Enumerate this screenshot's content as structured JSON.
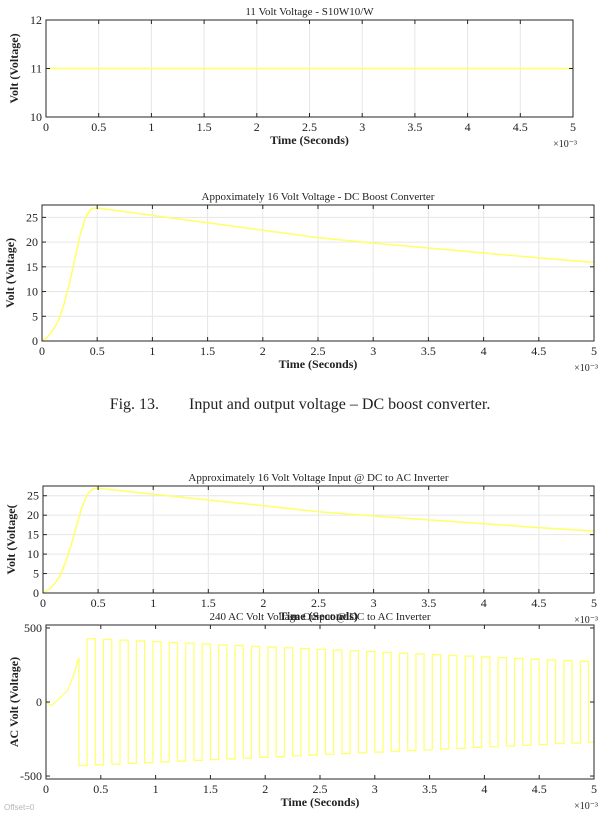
{
  "figure": {
    "caption_number": "Fig. 13.",
    "caption_text": "Input and output voltage – DC boost converter.",
    "offset_label": "Offset=0",
    "colors": {
      "line": "#ffff66",
      "axes": "#262626",
      "grid": "#e6e6e6",
      "background": "#ffffff"
    }
  },
  "chart_data": [
    {
      "type": "line",
      "title": "11 Volt Voltage - S10W10/W",
      "xlabel": "Time (Seconds)",
      "ylabel": "Volt (Voltage)",
      "xlim": [
        0,
        5
      ],
      "ylim": [
        10,
        12
      ],
      "xticks": [
        "0",
        "0.5",
        "1",
        "1.5",
        "2",
        "2.5",
        "3",
        "3.5",
        "4",
        "4.5",
        "5"
      ],
      "yticks": [
        "10",
        "11",
        "12"
      ],
      "x_multiplier": "×10⁻³",
      "grid": true,
      "series": [
        {
          "x": [
            0,
            5
          ],
          "y": [
            11,
            11
          ]
        }
      ]
    },
    {
      "type": "line",
      "title": "Appoximately 16 Volt Voltage - DC Boost Converter",
      "xlabel": "Time (Seconds)",
      "ylabel": "Volt (Voltage)",
      "xlim": [
        0,
        5
      ],
      "ylim": [
        0,
        27.5
      ],
      "xticks": [
        "0",
        "0.5",
        "1",
        "1.5",
        "2",
        "2.5",
        "3",
        "3.5",
        "4",
        "4.5",
        "5"
      ],
      "yticks": [
        "0",
        "5",
        "10",
        "15",
        "20",
        "25"
      ],
      "x_multiplier": "×10⁻³",
      "grid": true,
      "series": [
        {
          "x": [
            0,
            0.05,
            0.1,
            0.15,
            0.2,
            0.25,
            0.3,
            0.35,
            0.4,
            0.45,
            0.5,
            1,
            1.5,
            2,
            2.5,
            3,
            3.5,
            4,
            4.5,
            5
          ],
          "y": [
            0,
            0.8,
            2.2,
            4.2,
            7.5,
            11.8,
            16.8,
            21.8,
            25.3,
            26.8,
            26.9,
            25.4,
            23.9,
            22.4,
            20.9,
            19.8,
            18.8,
            17.8,
            16.8,
            15.9
          ]
        }
      ]
    },
    {
      "type": "line",
      "title": "Approximately 16 Volt Voltage Input @ DC to AC Inverter",
      "xlabel": "Time (Seconds)",
      "ylabel": "Volt (Voltage(",
      "xlim": [
        0,
        5
      ],
      "ylim": [
        0,
        27.5
      ],
      "xticks": [
        "0",
        "0.5",
        "1",
        "1.5",
        "2",
        "2.5",
        "3",
        "3.5",
        "4",
        "4.5",
        "5"
      ],
      "yticks": [
        "0",
        "5",
        "10",
        "15",
        "20",
        "25"
      ],
      "x_multiplier": "×10⁻³",
      "grid": true,
      "series": [
        {
          "x": [
            0,
            0.05,
            0.1,
            0.15,
            0.2,
            0.25,
            0.3,
            0.35,
            0.4,
            0.45,
            0.5,
            1,
            1.5,
            2,
            2.5,
            3,
            3.5,
            4,
            4.5,
            5
          ],
          "y": [
            0,
            0.8,
            2.2,
            4.2,
            7.5,
            11.8,
            16.8,
            21.8,
            25.3,
            26.8,
            26.9,
            25.4,
            23.9,
            22.4,
            20.9,
            19.8,
            18.8,
            17.8,
            16.8,
            15.9
          ]
        }
      ]
    },
    {
      "type": "line",
      "title": "240 AC Volt Voltage Output @ DC to AC Inverter",
      "xlabel": "Time (Seconds)",
      "ylabel": "AC Volt (Voltage)",
      "xlim": [
        0,
        5
      ],
      "ylim": [
        -520,
        520
      ],
      "xticks": [
        "0",
        "0.5",
        "1",
        "1.5",
        "2",
        "2.5",
        "3",
        "3.5",
        "4",
        "4.5",
        "5"
      ],
      "yticks": [
        "-500",
        "0",
        "500"
      ],
      "x_multiplier": "×10⁻³",
      "grid": false,
      "waveform": {
        "startup": {
          "x": [
            0,
            0.05,
            0.1,
            0.15,
            0.2,
            0.25,
            0.3
          ],
          "y": [
            0,
            -25,
            10,
            45,
            80,
            180,
            300
          ]
        },
        "period": 0.15,
        "start": 0.3,
        "end": 5,
        "amp_start": 430,
        "amp_end": 270
      }
    }
  ]
}
